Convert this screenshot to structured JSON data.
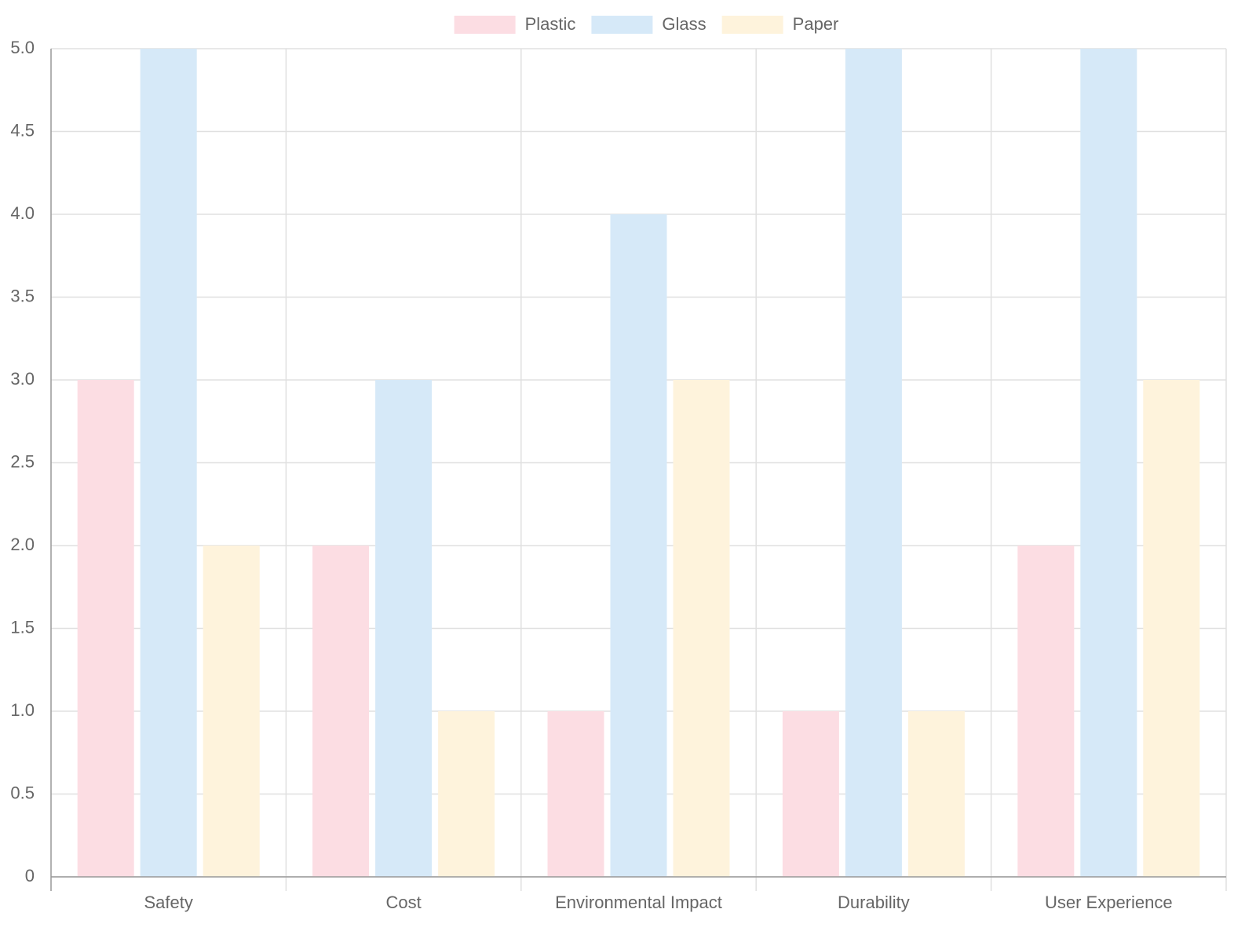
{
  "chart_data": {
    "type": "bar",
    "categories": [
      "Safety",
      "Cost",
      "Environmental Impact",
      "Durability",
      "User Experience"
    ],
    "series": [
      {
        "name": "Plastic",
        "color": "#fcdde3",
        "values": [
          3,
          2,
          1,
          1,
          2
        ]
      },
      {
        "name": "Glass",
        "color": "#d6e9f8",
        "values": [
          5,
          3,
          4,
          5,
          5
        ]
      },
      {
        "name": "Paper",
        "color": "#fef3dc",
        "values": [
          2,
          1,
          3,
          1,
          3
        ]
      }
    ],
    "ylim": [
      0,
      5
    ],
    "yticks": [
      0,
      0.5,
      {
        "value": 1,
        "label": "1.0"
      },
      1.5,
      {
        "value": 2,
        "label": "2.0"
      },
      2.5,
      {
        "value": 3,
        "label": "3.0"
      },
      3.5,
      {
        "value": 4,
        "label": "4.0"
      },
      4.5,
      {
        "value": 5,
        "label": "5.0"
      }
    ],
    "grid": true,
    "legend": "top"
  }
}
